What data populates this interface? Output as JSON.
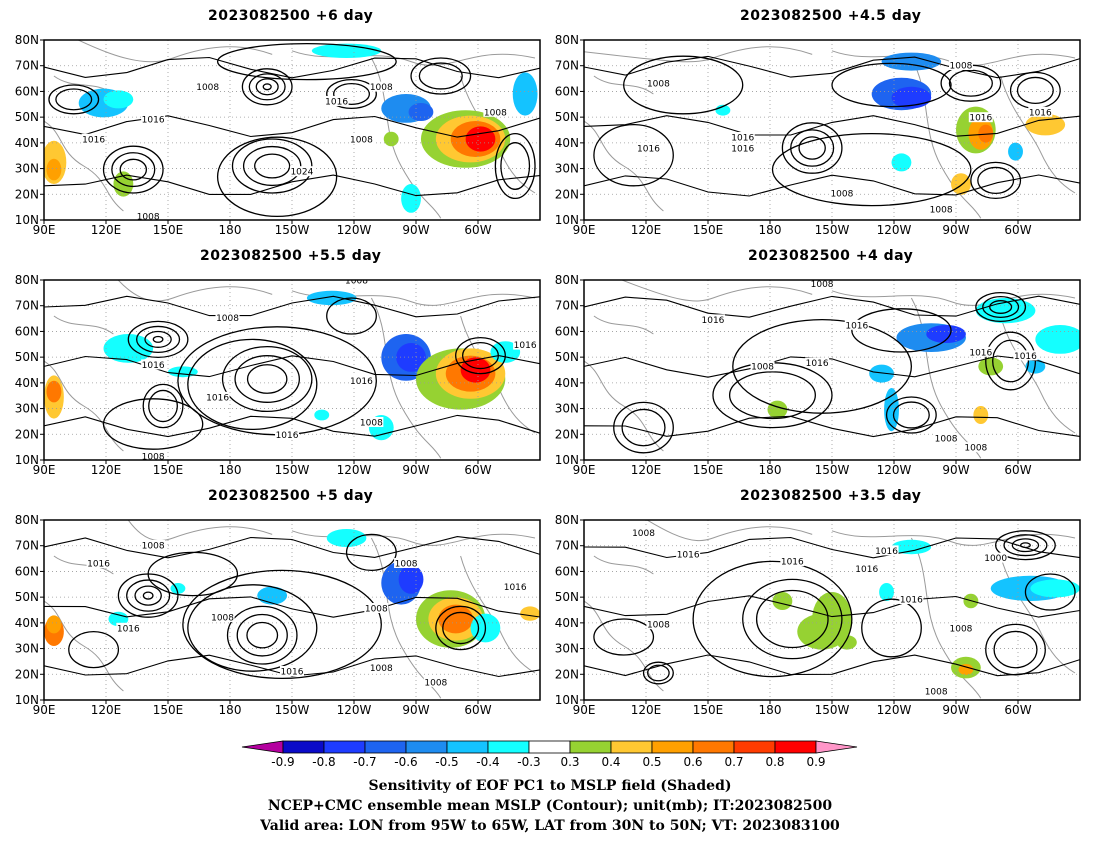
{
  "panels": [
    {
      "title": "2023082500  +6 day",
      "pos": "top-left",
      "labels": [
        "1008",
        "1016",
        "1008",
        "1016",
        "1008",
        "1024",
        "1016",
        "1008",
        "1008"
      ]
    },
    {
      "title": "2023082500  +4.5 day",
      "pos": "top-right",
      "labels": [
        "1008",
        "1016",
        "1008",
        "1016",
        "1016",
        "1016",
        "1008",
        "1016",
        "1008"
      ]
    },
    {
      "title": "2023082500  +5.5 day",
      "pos": "mid-left",
      "labels": [
        "1008",
        "1008",
        "1016",
        "1016",
        "1016",
        "1016",
        "1008",
        "1016",
        "1008"
      ]
    },
    {
      "title": "2023082500  +4 day",
      "pos": "mid-right",
      "labels": [
        "1008",
        "1016",
        "1016",
        "1008",
        "1016",
        "1016",
        "1016",
        "1008",
        "1008"
      ]
    },
    {
      "title": "2023082500  +5 day",
      "pos": "bot-left",
      "labels": [
        "1008",
        "1016",
        "1008",
        "1016",
        "1008",
        "1016",
        "1008",
        "1016",
        "1008",
        "1008"
      ]
    },
    {
      "title": "2023082500  +3.5 day",
      "pos": "bot-right",
      "labels": [
        "1008",
        "1016",
        "1016",
        "1008",
        "1016",
        "1000",
        "1016",
        "1016",
        "1008",
        "1008"
      ]
    }
  ],
  "axes": {
    "lat_ticks": [
      "80N",
      "70N",
      "60N",
      "50N",
      "40N",
      "30N",
      "20N",
      "10N"
    ],
    "lon_ticks": [
      "90E",
      "120E",
      "150E",
      "180",
      "150W",
      "120W",
      "90W",
      "60W"
    ]
  },
  "colorbar": {
    "colors": [
      "#b4009f",
      "#0a0ac8",
      "#1e3cff",
      "#1e64f0",
      "#1e8cf0",
      "#14c3ff",
      "#14ffff",
      "#ffffff",
      "#96d232",
      "#ffc832",
      "#ffa000",
      "#ff7800",
      "#ff3c00",
      "#ff0000",
      "#ff96c8"
    ],
    "labels": [
      "-0.9",
      "-0.8",
      "-0.7",
      "-0.6",
      "-0.5",
      "-0.4",
      "-0.3",
      "0.3",
      "0.4",
      "0.5",
      "0.6",
      "0.7",
      "0.8",
      "0.9"
    ]
  },
  "caption": {
    "line1": "Sensitivity of EOF PC1 to MSLP field (Shaded)",
    "line2": "NCEP+CMC ensemble mean MSLP (Contour); unit(mb); IT:2023082500",
    "line3": "Valid area: LON from 95W to 65W, LAT from 30N to 50N; VT: 2023083100"
  }
}
